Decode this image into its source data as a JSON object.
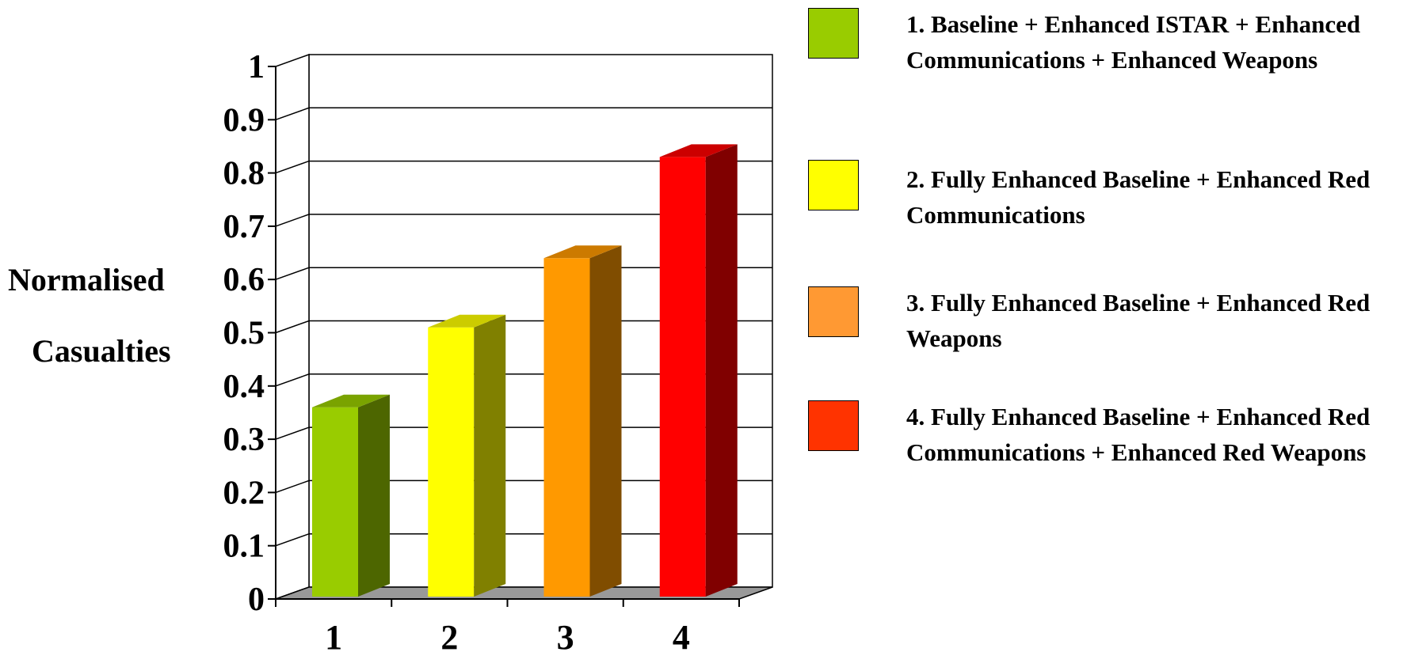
{
  "chart_data": {
    "type": "bar",
    "categories": [
      "1",
      "2",
      "3",
      "4"
    ],
    "values": [
      0.36,
      0.51,
      0.64,
      0.83
    ],
    "ylabel": "Normalised Casualties",
    "ylabel_lines": [
      "Normalised",
      "Casualties"
    ],
    "yticks": [
      "0",
      "0.1",
      "0.2",
      "0.3",
      "0.4",
      "0.5",
      "0.6",
      "0.7",
      "0.8",
      "0.9",
      "1"
    ],
    "ylim": [
      0,
      1
    ],
    "grid": true,
    "style": "3d",
    "bar_colors": [
      "#99cc00",
      "#ffff00",
      "#ff9900",
      "#ff0000"
    ],
    "legend_colors": [
      "#99cc00",
      "#ffff00",
      "#ff9933",
      "#ff3300"
    ],
    "legend_position": "right",
    "legend": [
      "1.  Baseline + Enhanced ISTAR + Enhanced Communications + Enhanced Weapons",
      "2.  Fully Enhanced Baseline + Enhanced Red Communications",
      "3.  Fully Enhanced Baseline + Enhanced Red Weapons",
      "4.  Fully Enhanced Baseline + Enhanced Red Communications + Enhanced Red Weapons"
    ]
  }
}
